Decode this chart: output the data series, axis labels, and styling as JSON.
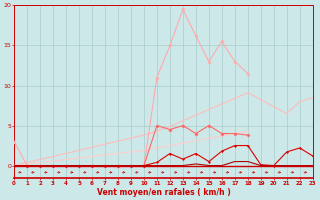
{
  "x": [
    0,
    1,
    2,
    3,
    4,
    5,
    6,
    7,
    8,
    9,
    10,
    11,
    12,
    13,
    14,
    15,
    16,
    17,
    18,
    19,
    20,
    21,
    22,
    23
  ],
  "line_pink_spiky": [
    3,
    0,
    0,
    0,
    0,
    0,
    0,
    0,
    0,
    0,
    0,
    11,
    15,
    19.5,
    16.2,
    13,
    15.5,
    13,
    11.5,
    null,
    null,
    null,
    null,
    null
  ],
  "line_red_markers": [
    0,
    0,
    0,
    0,
    0,
    0,
    0,
    0,
    0,
    0,
    0,
    5,
    4.5,
    5,
    4,
    5,
    4,
    4,
    3.8,
    null,
    null,
    null,
    null,
    null
  ],
  "line_slope_high": [
    0,
    0.38,
    0.76,
    1.14,
    1.52,
    1.9,
    2.28,
    2.67,
    3.05,
    3.43,
    3.81,
    4.3,
    4.9,
    5.6,
    6.3,
    7.0,
    7.7,
    8.4,
    9.1,
    null,
    null,
    6.5,
    8.0,
    8.5
  ],
  "line_slope_low": [
    0,
    0.19,
    0.38,
    0.57,
    0.76,
    0.95,
    1.14,
    1.33,
    1.52,
    1.71,
    1.9,
    2.2,
    2.5,
    2.8,
    3.1,
    3.4,
    3.7,
    4.0,
    4.3,
    null,
    null,
    null,
    null,
    null
  ],
  "line_dark_markers": [
    0,
    0,
    0,
    0,
    0,
    0,
    0,
    0,
    0,
    0,
    0,
    0.4,
    1.5,
    0.8,
    1.5,
    0.5,
    1.8,
    2.5,
    2.5,
    0.1,
    0,
    1.7,
    2.2,
    1.2
  ],
  "line_darkest": [
    0,
    0,
    0,
    0,
    0,
    0,
    0,
    0,
    0,
    0,
    0,
    0,
    0,
    0,
    0.2,
    0,
    0,
    0.5,
    0.5,
    0,
    0,
    0,
    0,
    0
  ],
  "bg_color": "#cde8e8",
  "grid_color": "#aacccc",
  "color_pink_spiky": "#ffaaaa",
  "color_red_markers": "#ff6666",
  "color_slope_high": "#ffbbbb",
  "color_slope_low": "#ffcccc",
  "color_dark": "#dd0000",
  "color_darkest": "#aa0000",
  "xlabel": "Vent moyen/en rafales ( km/h )",
  "xlim": [
    0,
    23
  ],
  "ylim": [
    0,
    20
  ],
  "yticks": [
    0,
    5,
    10,
    15,
    20
  ],
  "xticks": [
    0,
    1,
    2,
    3,
    4,
    5,
    6,
    7,
    8,
    9,
    10,
    11,
    12,
    13,
    14,
    15,
    16,
    17,
    18,
    19,
    20,
    21,
    22,
    23
  ]
}
